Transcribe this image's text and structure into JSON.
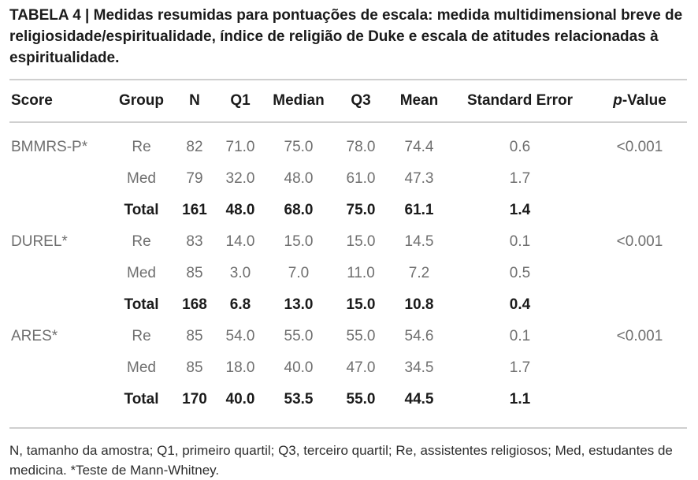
{
  "caption": "TABELA 4 | Medidas resumidas para pontuações de escala: medida multidimensional breve de religiosidade/espiritualidade, índice de religião de Duke e escala de atitudes relacionadas à espiritualidade.",
  "table": {
    "columns": [
      "Score",
      "Group",
      "N",
      "Q1",
      "Median",
      "Q3",
      "Mean",
      "Standard Error"
    ],
    "p_value_header": {
      "italic": "p",
      "rest": "-Value"
    },
    "rows": [
      {
        "score": "BMMRS-P*",
        "group": "Re",
        "n": "82",
        "q1": "71.0",
        "median": "75.0",
        "q3": "78.0",
        "mean": "74.4",
        "se": "0.6",
        "p": "<0.001"
      },
      {
        "score": "",
        "group": "Med",
        "n": "79",
        "q1": "32.0",
        "median": "48.0",
        "q3": "61.0",
        "mean": "47.3",
        "se": "1.7",
        "p": ""
      },
      {
        "score": "",
        "group": "Total",
        "n": "161",
        "q1": "48.0",
        "median": "68.0",
        "q3": "75.0",
        "mean": "61.1",
        "se": "1.4",
        "p": ""
      },
      {
        "score": "DUREL*",
        "group": "Re",
        "n": "83",
        "q1": "14.0",
        "median": "15.0",
        "q3": "15.0",
        "mean": "14.5",
        "se": "0.1",
        "p": "<0.001"
      },
      {
        "score": "",
        "group": "Med",
        "n": "85",
        "q1": "3.0",
        "median": "7.0",
        "q3": "11.0",
        "mean": "7.2",
        "se": "0.5",
        "p": ""
      },
      {
        "score": "",
        "group": "Total",
        "n": "168",
        "q1": "6.8",
        "median": "13.0",
        "q3": "15.0",
        "mean": "10.8",
        "se": "0.4",
        "p": ""
      },
      {
        "score": "ARES*",
        "group": "Re",
        "n": "85",
        "q1": "54.0",
        "median": "55.0",
        "q3": "55.0",
        "mean": "54.6",
        "se": "0.1",
        "p": "<0.001"
      },
      {
        "score": "",
        "group": "Med",
        "n": "85",
        "q1": "18.0",
        "median": "40.0",
        "q3": "47.0",
        "mean": "34.5",
        "se": "1.7",
        "p": ""
      },
      {
        "score": "",
        "group": "Total",
        "n": "170",
        "q1": "40.0",
        "median": "53.5",
        "q3": "55.0",
        "mean": "44.5",
        "se": "1.1",
        "p": ""
      }
    ],
    "colors": {
      "data_text": "#6f6f6f",
      "emphasis_text": "#1b1b1b",
      "rule": "#cfcfcf"
    }
  },
  "footnote": "N, tamanho da amostra; Q1, primeiro quartil; Q3, terceiro quartil; Re, assistentes religiosos; Med, estudantes de medicina. *Teste de Mann-Whitney."
}
